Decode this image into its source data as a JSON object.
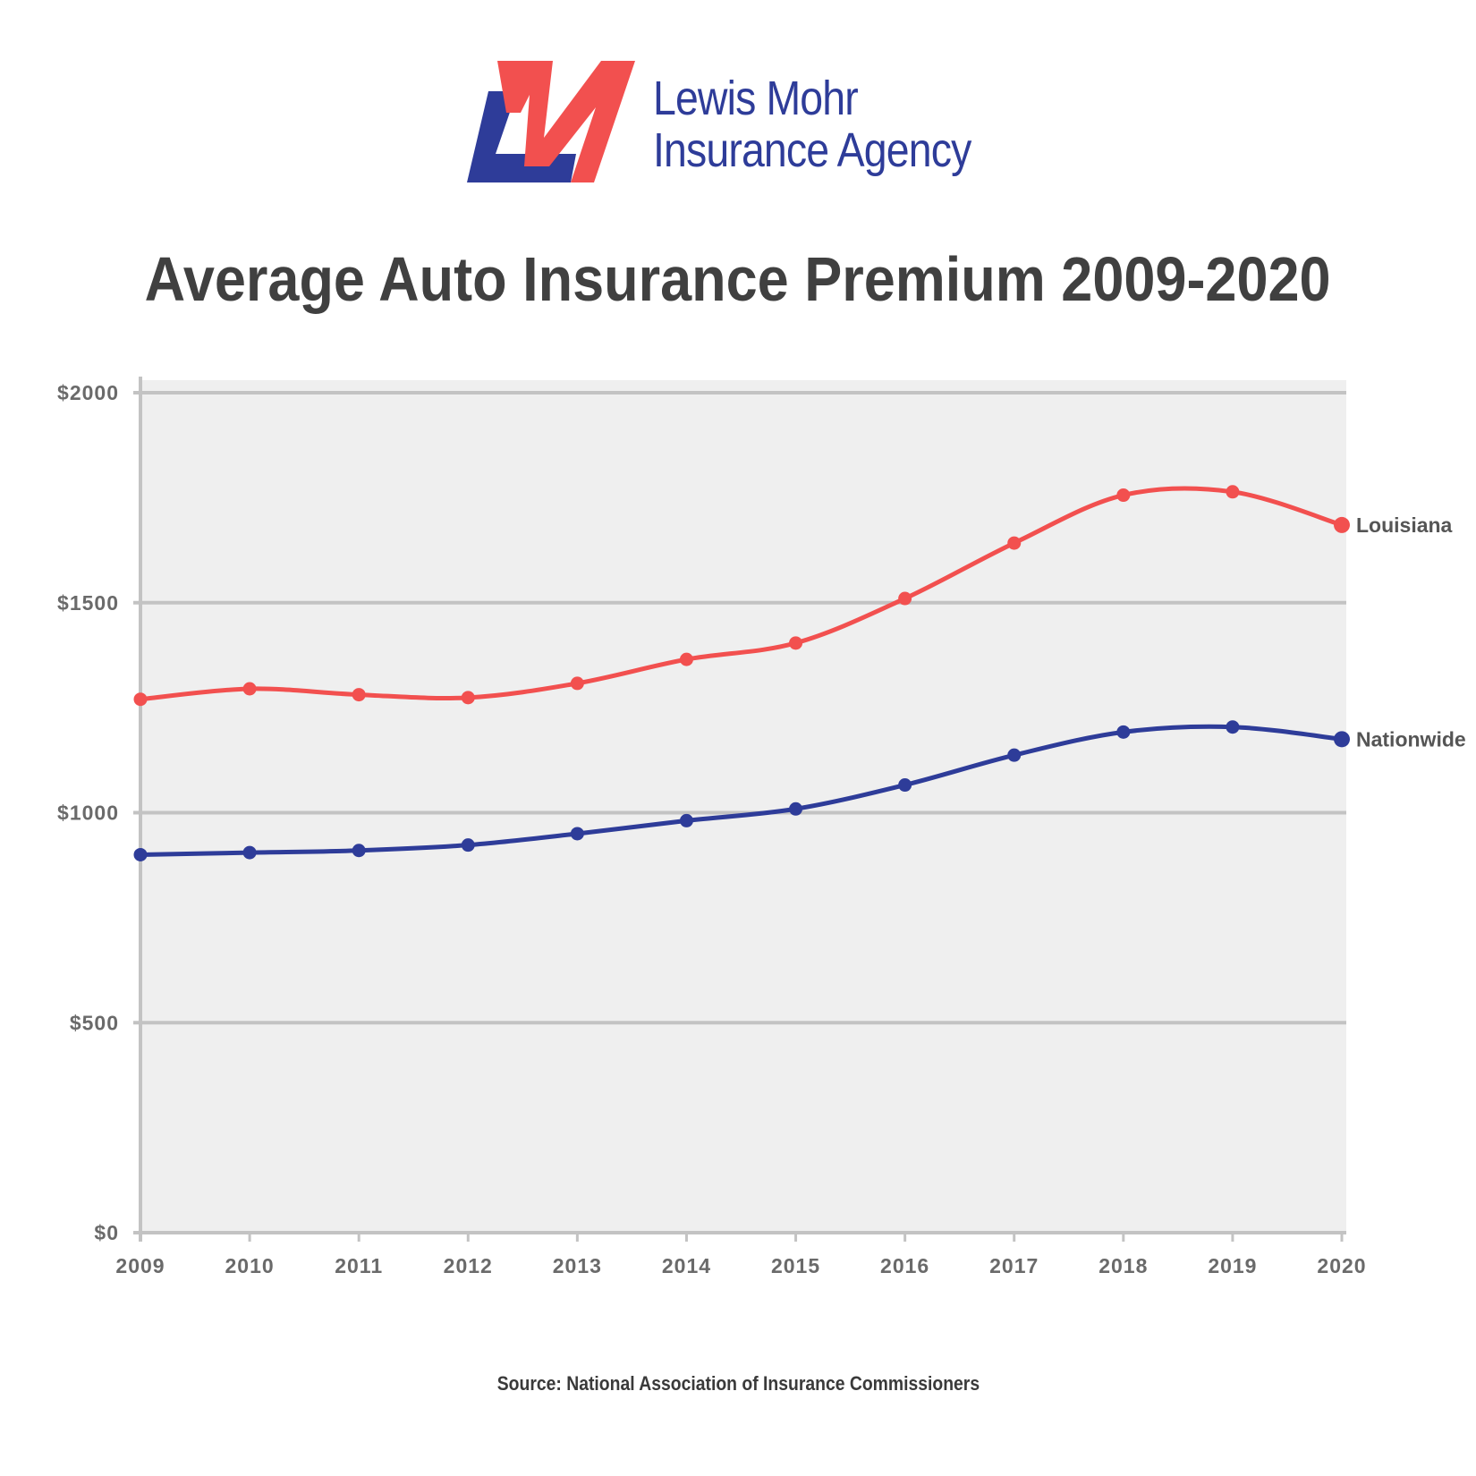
{
  "brand": {
    "name_line_1": "Lewis Mohr",
    "name_line_2": "Insurance Agency",
    "logo_letters": "LM",
    "colors": {
      "blue": "#2e3c99",
      "red": "#f2504f"
    }
  },
  "chart_data": {
    "type": "line",
    "title": "Average Auto Insurance Premium 2009-2020",
    "xlabel": "",
    "ylabel": "",
    "x": [
      "2009",
      "2010",
      "2011",
      "2012",
      "2013",
      "2014",
      "2015",
      "2016",
      "2017",
      "2018",
      "2019",
      "2020"
    ],
    "ylim": [
      0,
      2000
    ],
    "yticks": [
      0,
      500,
      1000,
      1500,
      2000
    ],
    "ytick_labels": [
      "$0",
      "$500",
      "$1000",
      "$1500",
      "$2000"
    ],
    "grid": true,
    "legend": "inline labels at right end of lines",
    "series": [
      {
        "name": "Louisiana",
        "color": "#f2504f",
        "values": [
          1270,
          1295,
          1281,
          1274,
          1308,
          1365,
          1404,
          1510,
          1642,
          1756,
          1764,
          1685
        ]
      },
      {
        "name": "Nationwide",
        "color": "#2e3c99",
        "values": [
          900,
          905,
          910,
          923,
          950,
          981,
          1009,
          1066,
          1137,
          1192,
          1204,
          1175
        ]
      }
    ],
    "source": "Source: National Association of Insurance Commissioners"
  }
}
